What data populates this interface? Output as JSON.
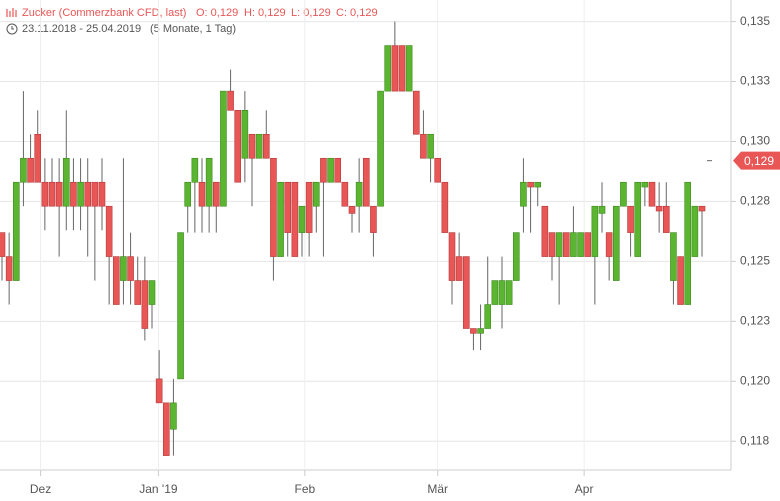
{
  "header": {
    "title": "Zucker (Commerzbank CFD, last)",
    "open": "O: 0,129",
    "high": "H: 0,129",
    "low": "L: 0,129",
    "close": "C: 0,129",
    "range": "23.11.2018 - 25.04.2019",
    "period": "(5 Monate, 1 Tag)"
  },
  "chart_data": {
    "type": "candlestick",
    "up_color": "#5cb531",
    "down_color": "#e85656",
    "grid": true,
    "ylim": [
      0.1163,
      0.1359
    ],
    "yticks": [
      {
        "value": 0.135,
        "label": "0,135"
      },
      {
        "value": 0.1325,
        "label": "0,133"
      },
      {
        "value": 0.13,
        "label": "0,130"
      },
      {
        "value": 0.1275,
        "label": "0,128"
      },
      {
        "value": 0.125,
        "label": "0,125"
      },
      {
        "value": 0.1225,
        "label": "0,123"
      },
      {
        "value": 0.12,
        "label": "0,120"
      },
      {
        "value": 0.1175,
        "label": "0,118"
      }
    ],
    "xticks": [
      {
        "value": 5.4,
        "label": "Dez"
      },
      {
        "value": 21.9,
        "label": "Jan '19"
      },
      {
        "value": 42.4,
        "label": "Feb"
      },
      {
        "value": 61,
        "label": "Mär"
      },
      {
        "value": 81.5,
        "label": "Apr"
      }
    ],
    "last_price": {
      "value": 0.1292,
      "label": "0,129"
    },
    "candles": [
      [
        0.1262,
        0.1262,
        0.1242,
        0.1252
      ],
      [
        0.1252,
        0.1262,
        0.1232,
        0.1242
      ],
      [
        0.1242,
        0.1283,
        0.1242,
        0.1283
      ],
      [
        0.1283,
        0.1321,
        0.1273,
        0.1293
      ],
      [
        0.1293,
        0.1303,
        0.1283,
        0.1283
      ],
      [
        0.1303,
        0.1313,
        0.1283,
        0.1283
      ],
      [
        0.1283,
        0.1293,
        0.1263,
        0.1273
      ],
      [
        0.1283,
        0.1293,
        0.1273,
        0.1273
      ],
      [
        0.1283,
        0.1293,
        0.1252,
        0.1273
      ],
      [
        0.1273,
        0.1313,
        0.1263,
        0.1293
      ],
      [
        0.1283,
        0.1293,
        0.1263,
        0.1273
      ],
      [
        0.1273,
        0.1293,
        0.1263,
        0.1283
      ],
      [
        0.1283,
        0.1293,
        0.1252,
        0.1273
      ],
      [
        0.1283,
        0.1283,
        0.1242,
        0.1273
      ],
      [
        0.1283,
        0.1293,
        0.1263,
        0.1273
      ],
      [
        0.1273,
        0.1273,
        0.1232,
        0.1252
      ],
      [
        0.1252,
        0.1252,
        0.1232,
        0.1232
      ],
      [
        0.1242,
        0.1293,
        0.1232,
        0.1252
      ],
      [
        0.1252,
        0.1262,
        0.1232,
        0.1242
      ],
      [
        0.1242,
        0.1252,
        0.1232,
        0.1232
      ],
      [
        0.1242,
        0.1252,
        0.1217,
        0.1222
      ],
      [
        0.1232,
        0.1242,
        0.1222,
        0.1242
      ],
      [
        0.1201,
        0.1213,
        0.1191,
        0.1191
      ],
      [
        0.1191,
        0.1191,
        0.1169,
        0.1169
      ],
      [
        0.118,
        0.1201,
        0.1169,
        0.1191
      ],
      [
        0.1201,
        0.1262,
        0.1201,
        0.1262
      ],
      [
        0.1273,
        0.1283,
        0.1262,
        0.1283
      ],
      [
        0.1283,
        0.1293,
        0.1262,
        0.1293
      ],
      [
        0.1283,
        0.1293,
        0.1262,
        0.1273
      ],
      [
        0.1273,
        0.1293,
        0.1262,
        0.1293
      ],
      [
        0.1283,
        0.1283,
        0.1262,
        0.1273
      ],
      [
        0.1273,
        0.1321,
        0.1273,
        0.1321
      ],
      [
        0.1321,
        0.133,
        0.1313,
        0.1313
      ],
      [
        0.1313,
        0.1313,
        0.1283,
        0.1283
      ],
      [
        0.1293,
        0.1321,
        0.1283,
        0.1313
      ],
      [
        0.1303,
        0.1303,
        0.1273,
        0.1293
      ],
      [
        0.1293,
        0.1303,
        0.1293,
        0.1303
      ],
      [
        0.1303,
        0.1313,
        0.1293,
        0.1293
      ],
      [
        0.1293,
        0.1293,
        0.1242,
        0.1252
      ],
      [
        0.1252,
        0.1283,
        0.1252,
        0.1283
      ],
      [
        0.1283,
        0.1283,
        0.1252,
        0.1262
      ],
      [
        0.1283,
        0.1283,
        0.1252,
        0.1252
      ],
      [
        0.1262,
        0.1273,
        0.1252,
        0.1273
      ],
      [
        0.1283,
        0.1283,
        0.1252,
        0.1262
      ],
      [
        0.1273,
        0.1283,
        0.1262,
        0.1283
      ],
      [
        0.1293,
        0.1293,
        0.1252,
        0.1283
      ],
      [
        0.1283,
        0.1293,
        0.1283,
        0.1293
      ],
      [
        0.1293,
        0.1293,
        0.1283,
        0.1283
      ],
      [
        0.1283,
        0.1283,
        0.1273,
        0.1273
      ],
      [
        0.1273,
        0.1273,
        0.1262,
        0.127
      ],
      [
        0.1273,
        0.1293,
        0.1262,
        0.1283
      ],
      [
        0.1293,
        0.1293,
        0.1273,
        0.1273
      ],
      [
        0.1273,
        0.1273,
        0.1252,
        0.1262
      ],
      [
        0.1273,
        0.1321,
        0.1273,
        0.1321
      ],
      [
        0.1321,
        0.134,
        0.1321,
        0.134
      ],
      [
        0.134,
        0.135,
        0.1321,
        0.1321
      ],
      [
        0.134,
        0.134,
        0.1321,
        0.1321
      ],
      [
        0.1321,
        0.134,
        0.1321,
        0.134
      ],
      [
        0.1321,
        0.1321,
        0.1303,
        0.1303
      ],
      [
        0.1303,
        0.1313,
        0.1293,
        0.1293
      ],
      [
        0.1293,
        0.1303,
        0.1283,
        0.1303
      ],
      [
        0.1293,
        0.1293,
        0.1283,
        0.1283
      ],
      [
        0.1283,
        0.1283,
        0.1262,
        0.1262
      ],
      [
        0.1262,
        0.1262,
        0.1232,
        0.1242
      ],
      [
        0.1252,
        0.1262,
        0.1242,
        0.1242
      ],
      [
        0.1252,
        0.1252,
        0.1222,
        0.1222
      ],
      [
        0.1222,
        0.1222,
        0.1213,
        0.122
      ],
      [
        0.122,
        0.1232,
        0.1213,
        0.1222
      ],
      [
        0.1222,
        0.1252,
        0.1222,
        0.1232
      ],
      [
        0.1232,
        0.1242,
        0.1232,
        0.1242
      ],
      [
        0.1232,
        0.1252,
        0.1222,
        0.1242
      ],
      [
        0.1232,
        0.1242,
        0.1232,
        0.1242
      ],
      [
        0.1242,
        0.1262,
        0.1242,
        0.1262
      ],
      [
        0.1273,
        0.1293,
        0.1262,
        0.1283
      ],
      [
        0.1283,
        0.1283,
        0.1262,
        0.1281
      ],
      [
        0.1281,
        0.1283,
        0.1273,
        0.1283
      ],
      [
        0.1273,
        0.1273,
        0.1252,
        0.1252
      ],
      [
        0.1262,
        0.1262,
        0.1242,
        0.1252
      ],
      [
        0.1252,
        0.1262,
        0.1232,
        0.1262
      ],
      [
        0.1262,
        0.1262,
        0.1252,
        0.1252
      ],
      [
        0.1252,
        0.1273,
        0.1252,
        0.1262
      ],
      [
        0.1252,
        0.1262,
        0.1252,
        0.1262
      ],
      [
        0.1262,
        0.1262,
        0.1252,
        0.1252
      ],
      [
        0.1252,
        0.1273,
        0.1232,
        0.1273
      ],
      [
        0.127,
        0.1283,
        0.1262,
        0.1273
      ],
      [
        0.1262,
        0.1262,
        0.1242,
        0.1252
      ],
      [
        0.1242,
        0.1273,
        0.1242,
        0.1273
      ],
      [
        0.1273,
        0.1283,
        0.1273,
        0.1283
      ],
      [
        0.1273,
        0.1273,
        0.1252,
        0.1262
      ],
      [
        0.1252,
        0.1283,
        0.1252,
        0.1283
      ],
      [
        0.1281,
        0.1283,
        0.1273,
        0.1283
      ],
      [
        0.1283,
        0.1283,
        0.1273,
        0.1273
      ],
      [
        0.1273,
        0.1283,
        0.1262,
        0.1271
      ],
      [
        0.1273,
        0.1283,
        0.1262,
        0.1262
      ],
      [
        0.1242,
        0.1262,
        0.1232,
        0.1262
      ],
      [
        0.1252,
        0.1252,
        0.1232,
        0.1232
      ],
      [
        0.1232,
        0.1283,
        0.1232,
        0.1283
      ],
      [
        0.1252,
        0.1273,
        0.1252,
        0.1273
      ],
      [
        0.1273,
        0.1273,
        0.1252,
        0.1271
      ]
    ]
  }
}
